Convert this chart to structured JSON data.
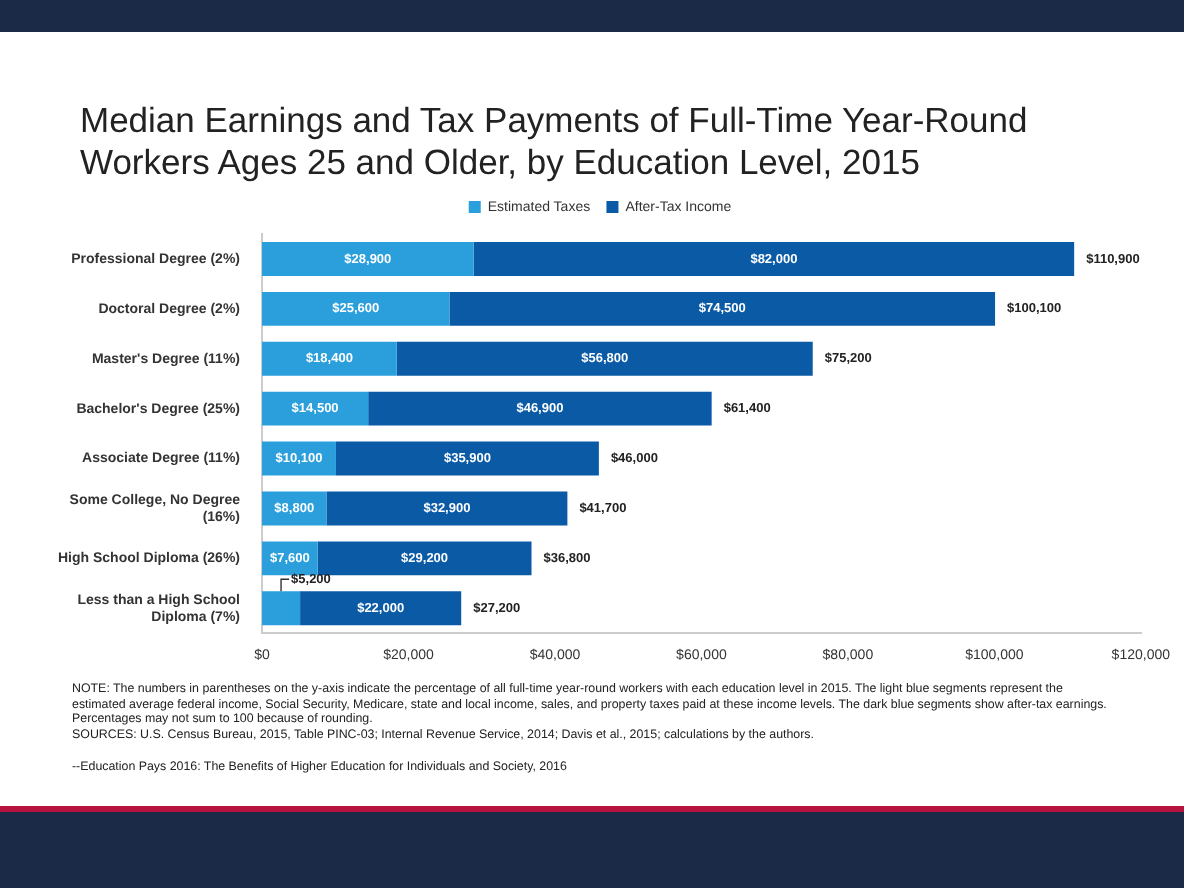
{
  "chart_data": {
    "type": "bar",
    "orientation": "horizontal",
    "stacked": true,
    "title": "Median Earnings and Tax Payments of Full-Time Year-Round Workers Ages 25 and Older, by Education Level, 2015",
    "categories": [
      "Professional Degree (2%)",
      "Doctoral Degree (2%)",
      "Master's Degree (11%)",
      "Bachelor's Degree (25%)",
      "Associate Degree (11%)",
      "Some College, No Degree (16%)",
      "High School Diploma (26%)",
      "Less than a High School Diploma (7%)"
    ],
    "series": [
      {
        "name": "Estimated Taxes",
        "color": "#2a9fdc",
        "values": [
          28900,
          25600,
          18400,
          14500,
          10100,
          8800,
          7600,
          5200
        ],
        "value_labels": [
          "$28,900",
          "$25,600",
          "$18,400",
          "$14,500",
          "$10,100",
          "$8,800",
          "$7,600",
          "$5,200"
        ]
      },
      {
        "name": "After-Tax Income",
        "color": "#0b5aa6",
        "values": [
          82000,
          74500,
          56800,
          46900,
          35900,
          32900,
          29200,
          22000
        ],
        "value_labels": [
          "$82,000",
          "$74,500",
          "$56,800",
          "$46,900",
          "$35,900",
          "$32,900",
          "$29,200",
          "$22,000"
        ]
      }
    ],
    "totals": [
      "$110,900",
      "$100,100",
      "$75,200",
      "$61,400",
      "$46,000",
      "$41,700",
      "$36,800",
      "$27,200"
    ],
    "xlim": [
      0,
      120000
    ],
    "xticks": [
      {
        "value": 0,
        "label": "$0"
      },
      {
        "value": 20000,
        "label": "$20,000"
      },
      {
        "value": 40000,
        "label": "$40,000"
      },
      {
        "value": 60000,
        "label": "$60,000"
      },
      {
        "value": 80000,
        "label": "$80,000"
      },
      {
        "value": 100000,
        "label": "$100,000"
      },
      {
        "value": 120000,
        "label": "$120,000"
      }
    ],
    "grid": false,
    "legend": "top",
    "annotations": [
      "NOTE: The numbers in parentheses on the y-axis indicate the percentage of all full-time year-round workers with each education level in 2015. The light blue segments represent the estimated average federal income, Social Security, Medicare, state and local income, sales, and property taxes paid at these income levels. The dark blue segments show after-tax earnings. Percentages may not sum to 100 because of rounding.",
      "SOURCES: U.S. Census Bureau, 2015, Table PINC-03; Internal Revenue Service, 2014; Davis et al., 2015; calculations by the authors.",
      "--Education Pays 2016: The Benefits of Higher Education for Individuals and Society, 2016"
    ]
  }
}
